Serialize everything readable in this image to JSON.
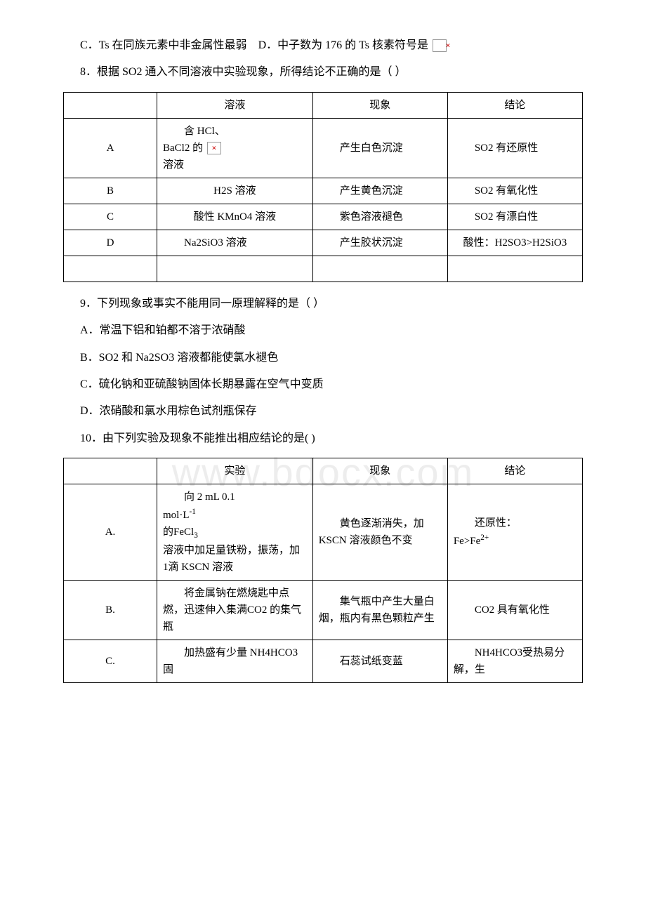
{
  "watermark": "www.bdocx.com",
  "q7": {
    "optC": "C．Ts 在同族元素中非金属性最弱",
    "optD_prefix": "D．中子数为 176 的 Ts 核素符号是 "
  },
  "q8": {
    "stem": "8．根据 SO2 通入不同溶液中实验现象，所得结论不正确的是（ ）",
    "headers": [
      "",
      "溶液",
      "现象",
      "结论"
    ],
    "rows": [
      {
        "label": "A",
        "sol_line1": "含 HCl、",
        "sol_line2_prefix": "BaCl2 的 ",
        "sol_line3": "溶液",
        "phenom": "产生白色沉淀",
        "concl": "SO2 有还原性"
      },
      {
        "label": "B",
        "sol": "H2S 溶液",
        "phenom": "产生黄色沉淀",
        "concl": "SO2 有氧化性"
      },
      {
        "label": "C",
        "sol": "酸性 KMnO4 溶液",
        "phenom": "紫色溶液褪色",
        "concl": "SO2 有漂白性"
      },
      {
        "label": "D",
        "sol": "Na2SiO3 溶液",
        "phenom": "产生胶状沉淀",
        "concl": "酸性：H2SO3>H2SiO3"
      }
    ]
  },
  "q9": {
    "stem": "9．下列现象或事实不能用同一原理解释的是（ ）",
    "optA": "A．常温下铝和铂都不溶于浓硝酸",
    "optB": "B．SO2 和 Na2SO3 溶液都能使氯水褪色",
    "optC": "C．硫化钠和亚硫酸钠固体长期暴露在空气中变质",
    "optD": "D．浓硝酸和氯水用棕色试剂瓶保存"
  },
  "q10": {
    "stem": "10．由下列实验及现象不能推出相应结论的是( )",
    "headers": [
      "",
      "实验",
      "现象",
      "结论"
    ],
    "rows": [
      {
        "label": "A.",
        "exp_line1": "向 2 mL 0.1",
        "exp_line2_prefix": "mol·L",
        "exp_line2_sup": "-1",
        "exp_line3_prefix": "的",
        "exp_line3_formula": "FeCl",
        "exp_line3_sub": "3",
        "exp_line4": "溶液中加足量铁粉，振荡，加 1滴 KSCN 溶液",
        "phenom": "黄色逐渐消失，加 KSCN 溶液颜色不变",
        "concl_prefix": "还原性：",
        "concl_formula1": "Fe>Fe",
        "concl_sup": "2+"
      },
      {
        "label": "B.",
        "exp": "将金属钠在燃烧匙中点燃，迅速伸入集满CO2 的集气瓶",
        "phenom": "集气瓶中产生大量白烟，瓶内有黑色颗粒产生",
        "concl": "CO2 具有氧化性"
      },
      {
        "label": "C.",
        "exp": "加热盛有少量 NH4HCO3 固",
        "phenom": "石蕊试纸变蓝",
        "concl": "NH4HCO3受热易分解，生"
      }
    ]
  }
}
